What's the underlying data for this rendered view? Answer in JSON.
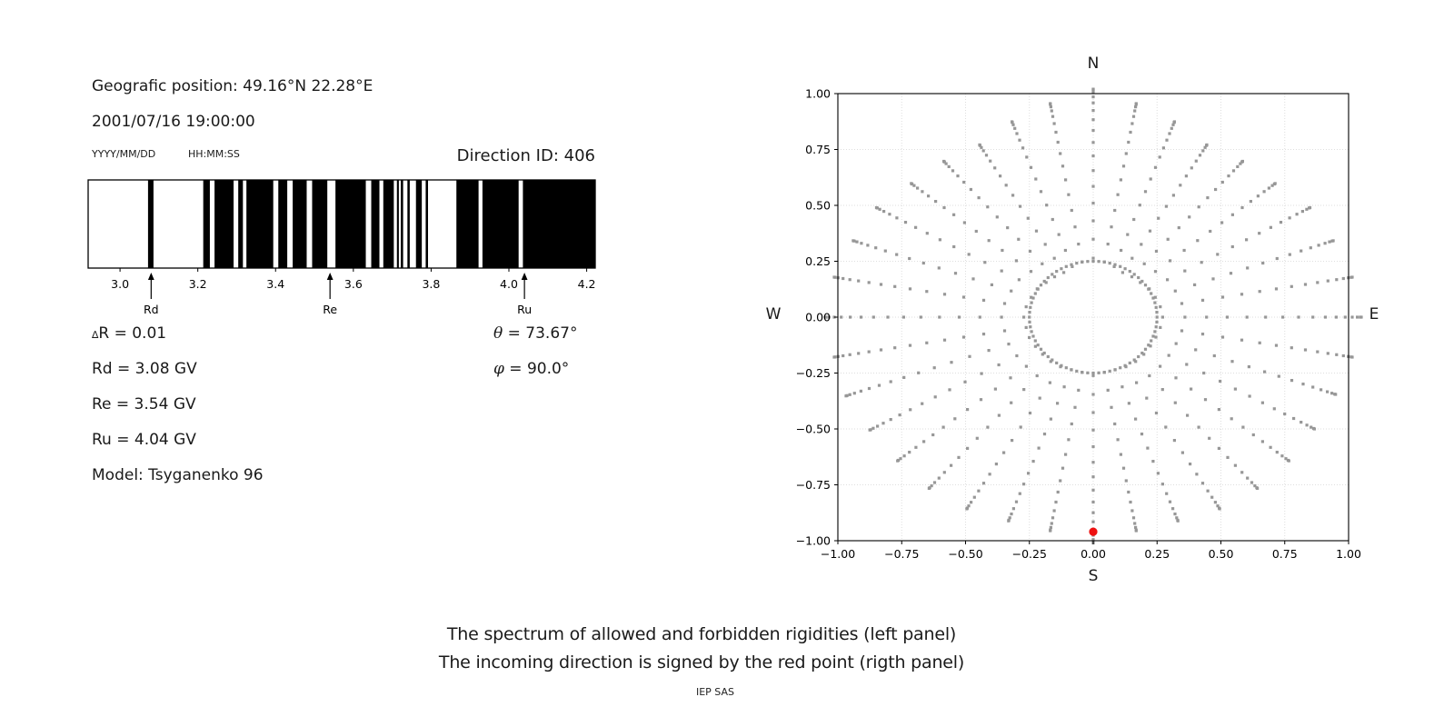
{
  "left_panel": {
    "geo_position": "Geografic position: 49.16°N 22.28°E",
    "datetime": "2001/07/16 19:00:00",
    "date_format": "YYYY/MM/DD",
    "time_format": "HH:MM:SS",
    "direction_id": "Direction ID: 406",
    "stats": {
      "delta_symbol": "∆",
      "delta_rest": "R = 0.01",
      "rd": "Rd = 3.08 GV",
      "re": "Re = 3.54 GV",
      "ru": "Ru = 4.04 GV",
      "model": "Model: Tsyganenko 96",
      "theta_symbol": "θ",
      "theta_rest": " = 73.67°",
      "phi_symbol": "φ",
      "phi_rest": " = 90.0°"
    },
    "xtick_labels": [
      "3.0",
      "3.2",
      "3.4",
      "3.6",
      "3.8",
      "4.0",
      "4.2"
    ]
  },
  "right_panel": {
    "compass": {
      "n": "N",
      "s": "S",
      "e": "E",
      "w": "W"
    },
    "xtick_labels": [
      "−1.00",
      "−0.75",
      "−0.50",
      "−0.25",
      "0.00",
      "0.25",
      "0.50",
      "0.75",
      "1.00"
    ],
    "ytick_labels": [
      "1.00",
      "0.75",
      "0.50",
      "0.25",
      "0.00",
      "−0.25",
      "−0.50",
      "−0.75",
      "−1.00"
    ]
  },
  "caption": {
    "line1": "The spectrum of allowed and forbidden rigidities (left panel)",
    "line2": "The incoming direction is signed by the red point (rigth panel)",
    "credit": "IEP SAS"
  },
  "chart_data": [
    {
      "type": "bar",
      "panel": "left",
      "description": "Barcode spectrum of allowed (white) and forbidden (black) rigidities in GV",
      "xlim": [
        2.918,
        4.222
      ],
      "xticks": [
        3.0,
        3.2,
        3.4,
        3.6,
        3.8,
        4.0,
        4.2
      ],
      "delta_r": 0.01,
      "forbidden_intervals_gv": [
        [
          3.072,
          3.086
        ],
        [
          3.214,
          3.231
        ],
        [
          3.243,
          3.292
        ],
        [
          3.304,
          3.316
        ],
        [
          3.325,
          3.394
        ],
        [
          3.407,
          3.43
        ],
        [
          3.444,
          3.48
        ],
        [
          3.494,
          3.533
        ],
        [
          3.554,
          3.632
        ],
        [
          3.646,
          3.667
        ],
        [
          3.677,
          3.704
        ],
        [
          3.712,
          3.717
        ],
        [
          3.722,
          3.728
        ],
        [
          3.739,
          3.745
        ],
        [
          3.761,
          3.776
        ],
        [
          3.786,
          3.792
        ],
        [
          3.865,
          3.922
        ],
        [
          3.932,
          4.025
        ],
        [
          4.036,
          4.222
        ]
      ],
      "markers": [
        {
          "label": "Rd",
          "value": 3.08
        },
        {
          "label": "Re",
          "value": 3.54
        },
        {
          "label": "Ru",
          "value": 4.04
        }
      ],
      "bar_color": "#000000",
      "background": "#ffffff"
    },
    {
      "type": "scatter",
      "panel": "right",
      "description": "Direction map: radial spokes of gray dots every 10° azimuth, dotted inner ring, red incoming-direction point",
      "xlim": [
        -1.0,
        1.0
      ],
      "ylim": [
        -1.0,
        1.0
      ],
      "xticks": [
        -1.0,
        -0.75,
        -0.5,
        -0.25,
        0.0,
        0.25,
        0.5,
        0.75,
        1.0
      ],
      "yticks": [
        -1.0,
        -0.75,
        -0.5,
        -0.25,
        0.0,
        0.25,
        0.5,
        0.75,
        1.0
      ],
      "grid": true,
      "spokes": {
        "azimuth_start_deg": 0,
        "azimuth_step_deg": 10,
        "count": 36,
        "tip_radii": [
          1.02,
          0.97,
          0.93,
          0.89,
          0.91,
          0.93,
          0.98,
          1.0,
          1.03,
          1.05,
          1.03,
          1.01,
          1.0,
          1.0,
          1.0,
          0.99,
          0.97,
          0.97,
          1.01,
          0.97,
          0.97,
          0.99,
          1.0,
          1.0,
          1.01,
          1.03,
          1.03,
          1.05,
          1.03,
          1.0,
          0.98,
          0.93,
          0.91,
          0.89,
          0.93,
          0.97
        ]
      },
      "zenith_sampling_deg": {
        "start": 15,
        "step": 5,
        "end": 90
      },
      "inner_ring": {
        "radius": 0.25,
        "dot_count": 72
      },
      "red_point": {
        "x": 0.0,
        "y": -0.96,
        "meaning": "incoming direction"
      },
      "dot_color": "#979797",
      "red_color": "#ee1111",
      "grid_color": "#dedede"
    }
  ]
}
